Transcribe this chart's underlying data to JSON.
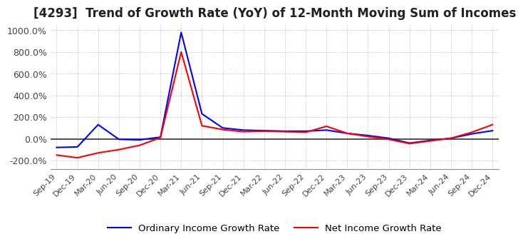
{
  "title": "[4293]  Trend of Growth Rate (YoY) of 12-Month Moving Sum of Incomes",
  "title_fontsize": 12,
  "ylim": [
    -280,
    1050
  ],
  "yticks": [
    -200,
    0,
    200,
    400,
    600,
    800,
    1000
  ],
  "ytick_labels": [
    "-200.0%",
    "0.0%",
    "200.0%",
    "400.0%",
    "600.0%",
    "800.0%",
    "1000.0%"
  ],
  "background_color": "#ffffff",
  "grid_color": "#aaaaaa",
  "legend_labels": [
    "Ordinary Income Growth Rate",
    "Net Income Growth Rate"
  ],
  "legend_colors": [
    "#0000ff",
    "#ff0000"
  ],
  "x_labels": [
    "Sep-19",
    "Dec-19",
    "Mar-20",
    "Jun-20",
    "Sep-20",
    "Dec-20",
    "Mar-21",
    "Jun-21",
    "Sep-21",
    "Dec-21",
    "Mar-22",
    "Jun-22",
    "Sep-22",
    "Dec-22",
    "Mar-23",
    "Jun-23",
    "Sep-23",
    "Dec-23",
    "Mar-24",
    "Jun-24",
    "Sep-24",
    "Dec-24"
  ],
  "ordinary_income": [
    -80,
    -75,
    130,
    -5,
    -10,
    15,
    980,
    230,
    100,
    80,
    75,
    70,
    70,
    80,
    50,
    30,
    5,
    -40,
    -15,
    5,
    45,
    75
  ],
  "net_income": [
    -150,
    -175,
    -130,
    -100,
    -60,
    10,
    800,
    120,
    85,
    65,
    70,
    65,
    60,
    115,
    50,
    20,
    -5,
    -45,
    -20,
    5,
    60,
    130
  ]
}
